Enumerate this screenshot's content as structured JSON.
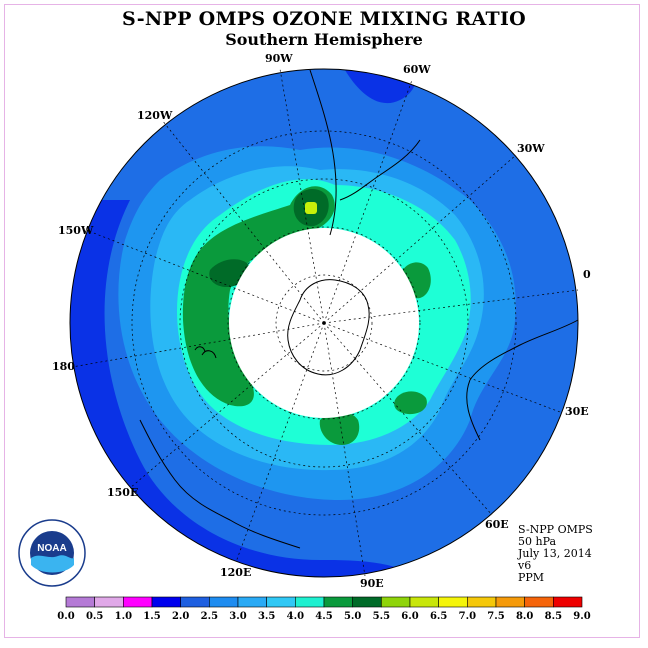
{
  "title": "S-NPP OMPS OZONE MIXING RATIO",
  "subtitle": "Southern Hemisphere",
  "longitude_labels": [
    "90W",
    "60W",
    "30W",
    "0",
    "30E",
    "60E",
    "90E",
    "120E",
    "150E",
    "180",
    "150W",
    "120W"
  ],
  "info": {
    "instrument": "S-NPP OMPS",
    "pressure": "50 hPa",
    "date": "July 13, 2014",
    "version": "v6",
    "units": "PPM"
  },
  "logo_text": "NOAA",
  "colorbar": {
    "ticks": [
      "0.0",
      "0.5",
      "1.0",
      "1.5",
      "2.0",
      "2.5",
      "3.0",
      "3.5",
      "4.0",
      "4.5",
      "5.0",
      "5.5",
      "6.0",
      "6.5",
      "7.0",
      "7.5",
      "8.0",
      "8.5",
      "9.0"
    ],
    "colors": [
      "#b57ad6",
      "#e0a8e8",
      "#ff00ff",
      "#0000ee",
      "#1e5fe0",
      "#1e8cf0",
      "#2aaaf5",
      "#30c8f5",
      "#1ef0d0",
      "#0a9a3c",
      "#006b28",
      "#8fd40a",
      "#c8e60a",
      "#f5f50a",
      "#f5c80a",
      "#f59a0a",
      "#f5640a",
      "#ee0000",
      "#8b5a3c"
    ]
  },
  "map_colors": {
    "outer_blue": "#0a32e6",
    "mid_blue": "#1e6ee6",
    "light_blue": "#1e96f0",
    "sky_blue": "#2ab8f5",
    "cyan": "#1effd6",
    "green": "#0a9a3c",
    "dark_green": "#006b28",
    "yellow_green": "#c8f00a",
    "no_data": "#ffffff"
  }
}
